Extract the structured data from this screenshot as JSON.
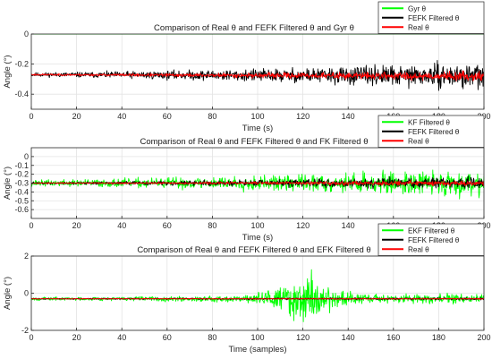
{
  "chart_data": [
    {
      "type": "line",
      "title": "Comparison of Real θ and FEFK Filtered θ and Gyr θ",
      "xlabel": "Time (s)",
      "ylabel": "Angle (°)",
      "xlim": [
        0,
        200
      ],
      "ylim": [
        -0.5,
        0.0
      ],
      "xticks": [
        "0",
        "20",
        "40",
        "60",
        "80",
        "100",
        "120",
        "140",
        "160",
        "180",
        "200"
      ],
      "yticks": [
        {
          "value": 0,
          "label": "0"
        },
        {
          "value": -0.2,
          "label": "-0.2"
        },
        {
          "value": -0.4,
          "label": "-0.4"
        }
      ],
      "grid": true,
      "legend_position": "top-right",
      "series": [
        {
          "name": "Gyr θ",
          "color": "#00ff00",
          "kind": "flat",
          "level": 0.0,
          "start": 0.0
        },
        {
          "name": "FEFK Filtered θ",
          "color": "#000000",
          "kind": "noise",
          "base_start": -0.27,
          "base_end": -0.28,
          "amp_start": 0.02,
          "amp_end": 0.12,
          "seed": 11
        },
        {
          "name": "Real θ",
          "color": "#ff0000",
          "kind": "noise",
          "base_start": -0.27,
          "base_end": -0.28,
          "amp_start": 0.008,
          "amp_end": 0.045,
          "seed": 23
        }
      ]
    },
    {
      "type": "line",
      "title": "Comparison of Real θ and FEFK Filtered θ and FK Filtered θ",
      "xlabel": "Time (s)",
      "ylabel": "Angle (°)",
      "xlim": [
        0,
        200
      ],
      "ylim": [
        -0.7,
        0.1
      ],
      "xticks": [
        "0",
        "20",
        "40",
        "60",
        "80",
        "100",
        "120",
        "140",
        "160",
        "180",
        "200"
      ],
      "yticks": [
        {
          "value": 0,
          "label": "0"
        },
        {
          "value": -0.1,
          "label": "-0.1"
        },
        {
          "value": -0.2,
          "label": "-0.2"
        },
        {
          "value": -0.3,
          "label": "-0.3"
        },
        {
          "value": -0.4,
          "label": "-0.4"
        },
        {
          "value": -0.5,
          "label": "-0.5"
        },
        {
          "value": -0.6,
          "label": "-0.6"
        }
      ],
      "grid": true,
      "legend_position": "top-right",
      "series": [
        {
          "name": "KF Filtered θ",
          "color": "#00ff00",
          "kind": "noise",
          "base_start": -0.3,
          "base_end": -0.3,
          "amp_start": 0.05,
          "amp_end": 0.22,
          "seed": 37
        },
        {
          "name": "FEFK Filtered θ",
          "color": "#000000",
          "kind": "noise",
          "base_start": -0.3,
          "base_end": -0.3,
          "amp_start": 0.015,
          "amp_end": 0.1,
          "seed": 41
        },
        {
          "name": "Real θ",
          "color": "#ff0000",
          "kind": "noise",
          "base_start": -0.3,
          "base_end": -0.3,
          "amp_start": 0.008,
          "amp_end": 0.045,
          "seed": 53
        }
      ]
    },
    {
      "type": "line",
      "title": "Comparison of Real θ and FEFK Filtered θ and EFK Filtered θ",
      "xlabel": "Time (samples)",
      "ylabel": "Angle (°)",
      "xlim": [
        0,
        200
      ],
      "ylim": [
        -2.0,
        2.0
      ],
      "xticks": [
        "0",
        "20",
        "40",
        "60",
        "80",
        "100",
        "120",
        "140",
        "160",
        "180",
        "200"
      ],
      "yticks": [
        {
          "value": 2,
          "label": "2"
        },
        {
          "value": 0,
          "label": "0"
        },
        {
          "value": -2,
          "label": "-2"
        }
      ],
      "grid": true,
      "legend_position": "top-right",
      "series": [
        {
          "name": "EKF Filtered θ",
          "color": "#00ff00",
          "kind": "burst",
          "base_start": -0.3,
          "base_end": -0.3,
          "amp_start": 0.12,
          "amp_end": 0.4,
          "burst_center": 120,
          "burst_width": 14,
          "burst_amp": 1.6,
          "seed": 67
        },
        {
          "name": "FEFK Filtered θ",
          "color": "#000000",
          "kind": "noise",
          "base_start": -0.3,
          "base_end": -0.3,
          "amp_start": 0.04,
          "amp_end": 0.09,
          "seed": 71
        },
        {
          "name": "Real θ",
          "color": "#ff0000",
          "kind": "noise",
          "base_start": -0.3,
          "base_end": -0.3,
          "amp_start": 0.02,
          "amp_end": 0.04,
          "seed": 83
        }
      ]
    }
  ]
}
